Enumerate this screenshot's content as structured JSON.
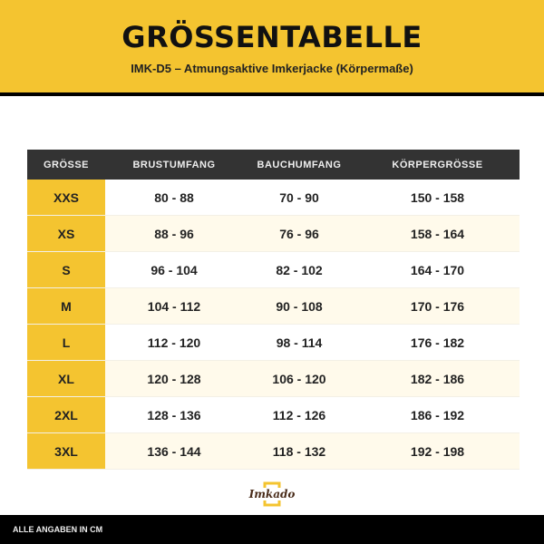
{
  "header": {
    "title": "GRÖSSENTABELLE",
    "subtitle": "IMK-D5 – Atmungsaktive Imkerjacke (Körpermaße)"
  },
  "table": {
    "columns": [
      "GRÖSSE",
      "BRUSTUMFANG",
      "BAUCHUMFANG",
      "KÖRPERGRÖSSE"
    ],
    "rows": [
      [
        "XXS",
        "80 - 88",
        "70 - 90",
        "150 - 158"
      ],
      [
        "XS",
        "88 - 96",
        "76 - 96",
        "158 - 164"
      ],
      [
        "S",
        "96 - 104",
        "82 - 102",
        "164 - 170"
      ],
      [
        "M",
        "104 - 112",
        "90 - 108",
        "170 - 176"
      ],
      [
        "L",
        "112 - 120",
        "98 - 114",
        "176 - 182"
      ],
      [
        "XL",
        "120 - 128",
        "106 - 120",
        "182 - 186"
      ],
      [
        "2XL",
        "128 - 136",
        "112 - 126",
        "186 - 192"
      ],
      [
        "3XL",
        "136 - 144",
        "118 - 132",
        "192 - 198"
      ]
    ]
  },
  "logo": {
    "text": "Imkado"
  },
  "footer": {
    "note": "ALLE ANGABEN IN CM"
  },
  "colors": {
    "accent": "#f4c430",
    "header_row": "#333333",
    "alt_row": "#fffaeb"
  }
}
